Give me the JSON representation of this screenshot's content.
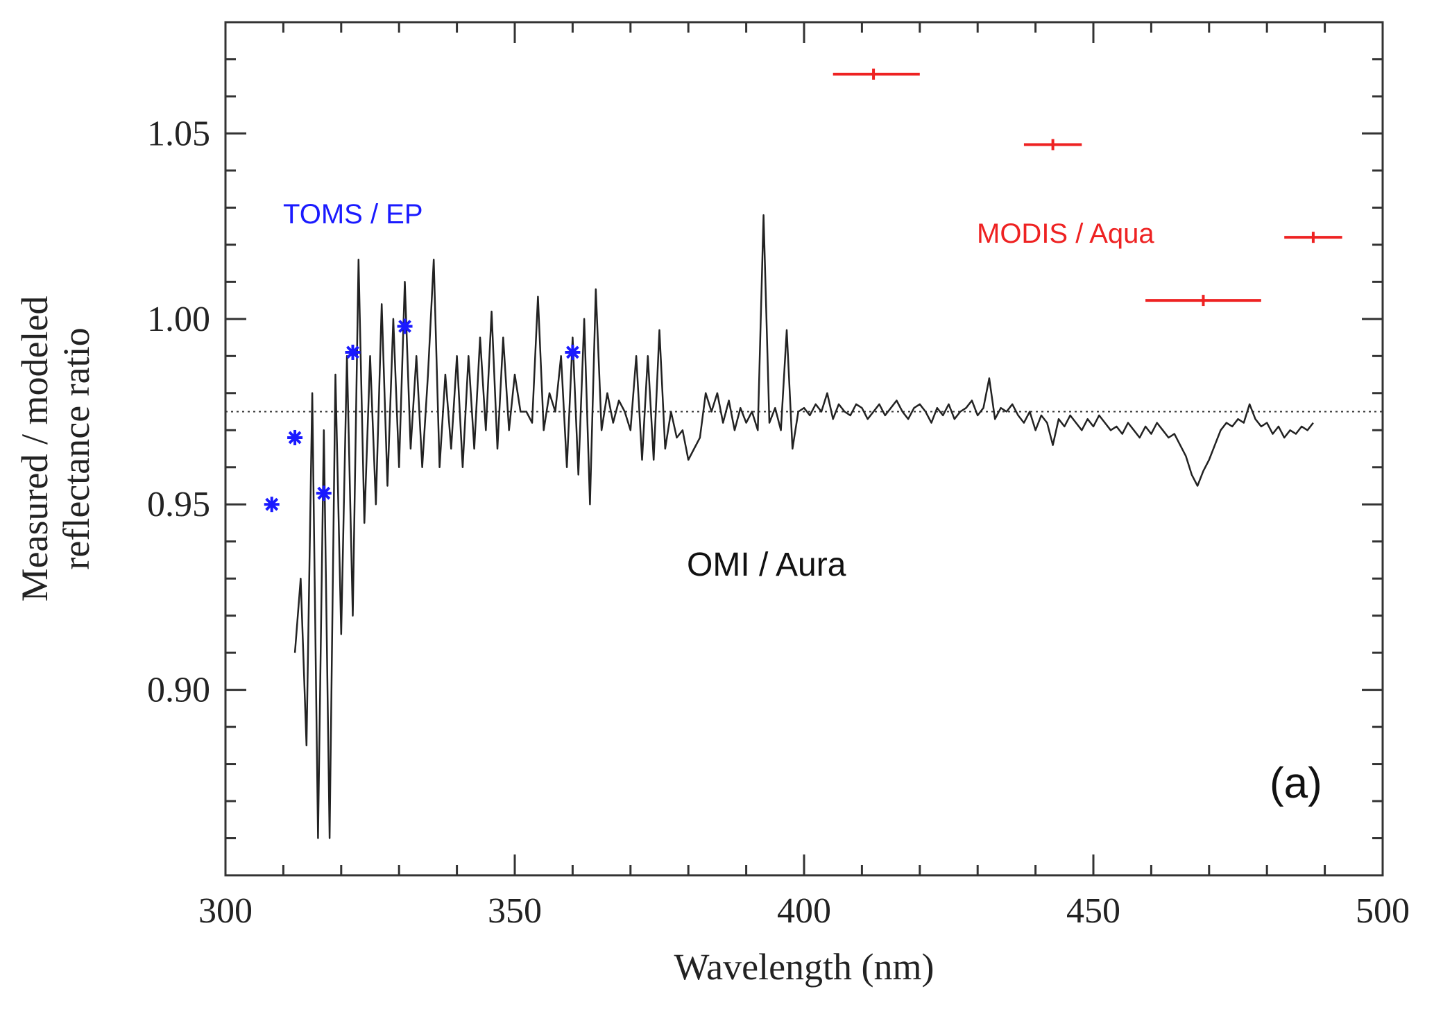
{
  "chart_data": {
    "type": "line",
    "xlabel": "Wavelength (nm)",
    "ylabel_lines": [
      "Measured / modeled",
      "reflectance ratio"
    ],
    "xlim": [
      300,
      500
    ],
    "ylim": [
      0.85,
      1.08
    ],
    "x_ticks": [
      300,
      350,
      400,
      450,
      500
    ],
    "x_tick_labels": [
      "300",
      "350",
      "400",
      "450",
      "500"
    ],
    "y_ticks": [
      0.9,
      0.95,
      1.0,
      1.05
    ],
    "y_tick_labels": [
      "0.90",
      "0.95",
      "1.00",
      "1.05"
    ],
    "x_minor_step": 10,
    "y_minor_step": 0.01,
    "grid": false,
    "reference_line": {
      "y": 0.975,
      "style": "dotted",
      "color": "#333333"
    },
    "panel_label": "(a)",
    "series": [
      {
        "name": "OMI / Aura",
        "color": "#222222",
        "label_color": "#111111",
        "style": "line",
        "x_start": 312,
        "x_step": 1,
        "y": [
          0.91,
          0.93,
          0.885,
          0.98,
          0.86,
          0.97,
          0.86,
          0.985,
          0.915,
          0.99,
          0.92,
          1.016,
          0.945,
          0.99,
          0.95,
          1.004,
          0.955,
          1.0,
          0.96,
          1.01,
          0.965,
          0.99,
          0.96,
          0.985,
          1.016,
          0.96,
          0.985,
          0.965,
          0.99,
          0.96,
          0.99,
          0.965,
          0.995,
          0.97,
          1.002,
          0.965,
          0.995,
          0.97,
          0.985,
          0.975,
          0.975,
          0.972,
          1.006,
          0.97,
          0.98,
          0.975,
          0.99,
          0.96,
          0.995,
          0.958,
          1.0,
          0.95,
          1.008,
          0.97,
          0.98,
          0.972,
          0.978,
          0.975,
          0.97,
          0.99,
          0.962,
          0.99,
          0.962,
          0.997,
          0.965,
          0.975,
          0.968,
          0.97,
          0.962,
          0.965,
          0.968,
          0.98,
          0.975,
          0.98,
          0.972,
          0.978,
          0.97,
          0.976,
          0.972,
          0.975,
          0.97,
          1.028,
          0.972,
          0.976,
          0.97,
          0.997,
          0.965,
          0.975,
          0.976,
          0.974,
          0.977,
          0.975,
          0.98,
          0.973,
          0.977,
          0.975,
          0.974,
          0.977,
          0.976,
          0.973,
          0.975,
          0.977,
          0.974,
          0.976,
          0.978,
          0.975,
          0.973,
          0.976,
          0.977,
          0.975,
          0.972,
          0.976,
          0.974,
          0.977,
          0.973,
          0.975,
          0.976,
          0.978,
          0.974,
          0.976,
          0.984,
          0.973,
          0.976,
          0.975,
          0.977,
          0.974,
          0.972,
          0.975,
          0.97,
          0.974,
          0.972,
          0.966,
          0.973,
          0.971,
          0.974,
          0.972,
          0.97,
          0.973,
          0.971,
          0.974,
          0.972,
          0.97,
          0.971,
          0.969,
          0.972,
          0.97,
          0.968,
          0.971,
          0.969,
          0.972,
          0.97,
          0.968,
          0.969,
          0.966,
          0.963,
          0.958,
          0.955,
          0.959,
          0.962,
          0.966,
          0.97,
          0.972,
          0.971,
          0.973,
          0.972,
          0.977,
          0.973,
          0.971,
          0.972,
          0.969,
          0.971,
          0.968,
          0.97,
          0.969,
          0.971,
          0.97,
          0.972
        ]
      },
      {
        "name": "TOMS / EP",
        "color": "#1a1aff",
        "style": "asterisk",
        "points": [
          [
            308,
            0.95
          ],
          [
            312,
            0.968
          ],
          [
            317,
            0.953
          ],
          [
            322,
            0.991
          ],
          [
            331,
            0.998
          ],
          [
            360,
            0.991
          ]
        ]
      },
      {
        "name": "MODIS / Aqua",
        "color": "#ee2222",
        "style": "horizontal-errorbar",
        "points": [
          {
            "x": 412,
            "y": 1.066,
            "xmin": 405,
            "xmax": 420
          },
          {
            "x": 443,
            "y": 1.047,
            "xmin": 438,
            "xmax": 448
          },
          {
            "x": 469,
            "y": 1.005,
            "xmin": 459,
            "xmax": 479
          },
          {
            "x": 488,
            "y": 1.022,
            "xmin": 483,
            "xmax": 493
          }
        ]
      }
    ]
  }
}
